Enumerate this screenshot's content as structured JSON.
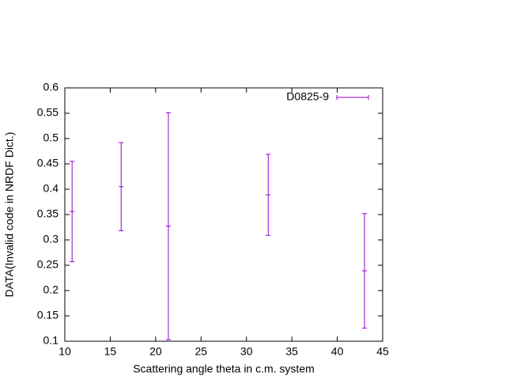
{
  "chart_data": {
    "type": "errorbar",
    "xlabel": "Scattering angle theta in c.m. system",
    "ylabel": "DATA(Invalid code in NRDF Dict.)",
    "xlim": [
      10,
      45
    ],
    "xticks": [
      10,
      15,
      20,
      25,
      30,
      35,
      40,
      45
    ],
    "ylim": [
      0.1,
      0.6
    ],
    "yticks": [
      0.1,
      0.15,
      0.2,
      0.25,
      0.3,
      0.35,
      0.4,
      0.45,
      0.5,
      0.55,
      0.6
    ],
    "grid": false,
    "legend": "top-right",
    "series": [
      {
        "name": "D0825-9",
        "color": "#9400d3",
        "x": [
          10.8,
          16.2,
          21.4,
          32.4,
          43.0
        ],
        "values": [
          0.356,
          0.405,
          0.327,
          0.389,
          0.239
        ],
        "errors": [
          0.099,
          0.087,
          0.224,
          0.08,
          0.113
        ]
      }
    ]
  }
}
